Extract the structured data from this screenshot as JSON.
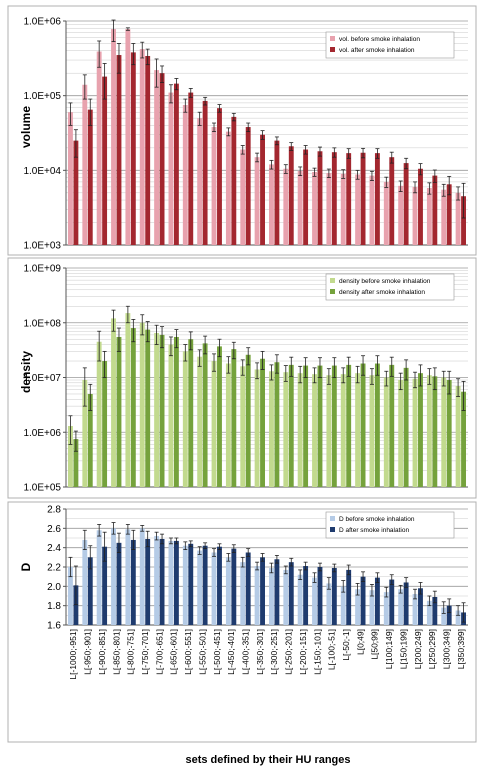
{
  "figure": {
    "xlabel": "sets defined by their HU ranges"
  },
  "chart_data": [
    {
      "type": "bar",
      "ylabel": "volume",
      "yscale": "log",
      "ylim": [
        1000,
        1000000
      ],
      "ytick_labels": [
        "1.0E+03",
        "1.0E+04",
        "1.0E+05",
        "1.0E+06"
      ],
      "ytick_values": [
        1000,
        10000,
        100000,
        1000000
      ],
      "grid": "horizontal",
      "legend_position": "top-right",
      "categories": [
        "L[-1000;-951]",
        "L[-950;-901]",
        "L[-900;-851]",
        "L[-850;-801]",
        "L[-800;-751]",
        "L[-750;-701]",
        "L[-700;-651]",
        "L[-650;-601]",
        "L[-600;-551]",
        "L[-550;-501]",
        "L[-500;-451]",
        "L[-450;-401]",
        "L[-400;-351]",
        "L[-350;-301]",
        "L[-300;-251]",
        "L[-250;-201]",
        "L[-200;-151]",
        "L[-150;-101]",
        "L[-100;-51]",
        "L[-50;-1]",
        "L[0;49]",
        "L[50;99]",
        "L[100;149]",
        "L[150;199]",
        "L[200;249]",
        "L[250;299]",
        "L[300;349]",
        "L[350;399]"
      ],
      "series": [
        {
          "name": "vol. before smoke inhalation",
          "color": "#e8a2ae",
          "values": [
            60000,
            140000,
            390000,
            780000,
            780000,
            420000,
            220000,
            110000,
            75000,
            50000,
            38000,
            33000,
            19000,
            15000,
            12000,
            10500,
            9800,
            9500,
            9200,
            9000,
            8800,
            8500,
            7000,
            6200,
            6000,
            5800,
            5500,
            5000
          ],
          "errors": [
            20000,
            50000,
            150000,
            250000,
            30000,
            100000,
            90000,
            30000,
            15000,
            10000,
            5000,
            4000,
            2500,
            2000,
            1600,
            1400,
            1300,
            1200,
            1200,
            1200,
            1200,
            1200,
            1100,
            1000,
            1000,
            1000,
            1000,
            1000
          ]
        },
        {
          "name": "vol. after smoke inhalation",
          "color": "#a3272f",
          "values": [
            25000,
            65000,
            180000,
            350000,
            380000,
            340000,
            200000,
            145000,
            110000,
            85000,
            68000,
            52000,
            38000,
            30000,
            25000,
            21000,
            19000,
            18000,
            17500,
            17000,
            17200,
            17000,
            15000,
            12500,
            10500,
            8500,
            6500,
            4500
          ],
          "errors": [
            10000,
            25000,
            90000,
            150000,
            120000,
            80000,
            50000,
            25000,
            15000,
            10000,
            8000,
            6000,
            5000,
            4000,
            3000,
            2500,
            2500,
            2500,
            2500,
            2500,
            2500,
            2500,
            2500,
            2000,
            1800,
            1600,
            1800,
            2200
          ]
        }
      ]
    },
    {
      "type": "bar",
      "ylabel": "density",
      "yscale": "log",
      "ylim": [
        100000,
        1000000000
      ],
      "ytick_labels": [
        "1.0E+05",
        "1.0E+06",
        "1.0E+07",
        "1.0E+08",
        "1.0E+09"
      ],
      "ytick_values": [
        100000,
        1000000,
        10000000,
        100000000,
        1000000000
      ],
      "grid": "horizontal",
      "legend_position": "top-right",
      "categories": [
        "L[-1000;-951]",
        "L[-950;-901]",
        "L[-900;-851]",
        "L[-850;-801]",
        "L[-800;-751]",
        "L[-750;-701]",
        "L[-700;-651]",
        "L[-650;-601]",
        "L[-600;-551]",
        "L[-550;-501]",
        "L[-500;-451]",
        "L[-450;-401]",
        "L[-400;-351]",
        "L[-350;-301]",
        "L[-300;-251]",
        "L[-250;-201]",
        "L[-200;-151]",
        "L[-150;-101]",
        "L[-100;-51]",
        "L[-50;-1]",
        "L[0;49]",
        "L[50;99]",
        "L[100;149]",
        "L[150;199]",
        "L[200;249]",
        "L[250;299]",
        "L[300;349]",
        "L[350;399]"
      ],
      "series": [
        {
          "name": "density before smoke inhalation",
          "color": "#c2da8e",
          "values": [
            1300000,
            9000000,
            45000000,
            120000000,
            150000000,
            100000000,
            65000000,
            40000000,
            30000000,
            24000000,
            20000000,
            18000000,
            16000000,
            14000000,
            13000000,
            12500000,
            12000000,
            11500000,
            11000000,
            11500000,
            12000000,
            11000000,
            10000000,
            9000000,
            9500000,
            11000000,
            10000000,
            7000000
          ],
          "errors": [
            700000,
            6000000,
            25000000,
            50000000,
            50000000,
            40000000,
            25000000,
            15000000,
            10000000,
            8000000,
            7000000,
            6000000,
            5000000,
            4500000,
            4000000,
            4000000,
            4000000,
            3500000,
            3500000,
            3500000,
            4000000,
            3500000,
            3000000,
            3000000,
            3000000,
            3500000,
            3000000,
            2500000
          ]
        },
        {
          "name": "density after smoke inhalation",
          "color": "#75a23c",
          "values": [
            750000,
            5000000,
            20000000,
            55000000,
            80000000,
            75000000,
            60000000,
            55000000,
            50000000,
            42000000,
            37000000,
            33000000,
            26000000,
            22000000,
            19000000,
            17000000,
            16500000,
            16500000,
            16500000,
            17000000,
            18000000,
            18000000,
            17000000,
            15000000,
            12000000,
            10500000,
            9000000,
            5500000
          ],
          "errors": [
            300000,
            2500000,
            10000000,
            25000000,
            35000000,
            30000000,
            25000000,
            20000000,
            18000000,
            15000000,
            13000000,
            11000000,
            9000000,
            8000000,
            7000000,
            6500000,
            6500000,
            6500000,
            6500000,
            6500000,
            7000000,
            7000000,
            6500000,
            6000000,
            5000000,
            4500000,
            4000000,
            3000000
          ]
        }
      ]
    },
    {
      "type": "bar",
      "ylabel": "D",
      "yscale": "linear",
      "ylim": [
        1.6,
        2.8
      ],
      "ytick_labels": [
        "1.6",
        "1.8",
        "2.0",
        "2.2",
        "2.4",
        "2.6",
        "2.8"
      ],
      "ytick_values": [
        1.6,
        1.8,
        2.0,
        2.2,
        2.4,
        2.6,
        2.8
      ],
      "grid": "horizontal",
      "legend_position": "top-right",
      "categories": [
        "L[-1000;-951]",
        "L[-950;-901]",
        "L[-900;-851]",
        "L[-850;-801]",
        "L[-800;-751]",
        "L[-750;-701]",
        "L[-700;-651]",
        "L[-650;-601]",
        "L[-600;-551]",
        "L[-550;-501]",
        "L[-500;-451]",
        "L[-450;-401]",
        "L[-400;-351]",
        "L[-350;-301]",
        "L[-300;-251]",
        "L[-250;-201]",
        "L[-200;-151]",
        "L[-150;-101]",
        "L[-100;-51]",
        "L[-50;-1]",
        "L[0;49]",
        "L[50;99]",
        "L[100;149]",
        "L[150;199]",
        "L[200;249]",
        "L[250;299]",
        "L[300;349]",
        "L[350;399]"
      ],
      "series": [
        {
          "name": "D before smoke inhalation",
          "color": "#b5cbe6",
          "values": [
            2.2,
            2.48,
            2.58,
            2.6,
            2.59,
            2.6,
            2.52,
            2.47,
            2.42,
            2.37,
            2.35,
            2.3,
            2.25,
            2.21,
            2.19,
            2.17,
            2.12,
            2.09,
            2.03,
            2.0,
            1.97,
            1.96,
            1.94,
            1.97,
            1.92,
            1.85,
            1.78,
            1.75
          ],
          "errors": [
            0.1,
            0.1,
            0.06,
            0.06,
            0.05,
            0.03,
            0.04,
            0.03,
            0.04,
            0.04,
            0.04,
            0.04,
            0.05,
            0.04,
            0.05,
            0.04,
            0.05,
            0.05,
            0.06,
            0.06,
            0.06,
            0.06,
            0.05,
            0.04,
            0.05,
            0.05,
            0.06,
            0.05
          ]
        },
        {
          "name": "D after smoke inhalation",
          "color": "#1f3b6e",
          "values": [
            2.01,
            2.3,
            2.41,
            2.45,
            2.48,
            2.49,
            2.49,
            2.47,
            2.44,
            2.42,
            2.41,
            2.39,
            2.35,
            2.3,
            2.28,
            2.25,
            2.21,
            2.2,
            2.19,
            2.17,
            2.1,
            2.09,
            2.07,
            2.04,
            1.98,
            1.89,
            1.8,
            1.73
          ],
          "errors": [
            0.2,
            0.12,
            0.15,
            0.1,
            0.1,
            0.08,
            0.05,
            0.03,
            0.03,
            0.03,
            0.03,
            0.04,
            0.04,
            0.04,
            0.04,
            0.04,
            0.04,
            0.04,
            0.04,
            0.05,
            0.05,
            0.05,
            0.05,
            0.05,
            0.06,
            0.06,
            0.07,
            0.1
          ]
        }
      ]
    }
  ]
}
